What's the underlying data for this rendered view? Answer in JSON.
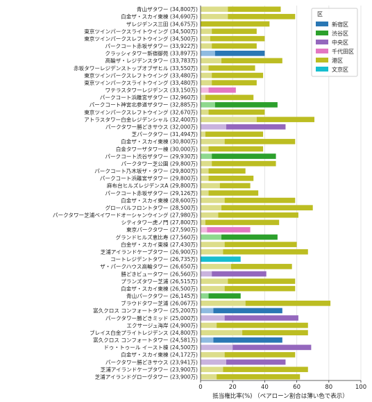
{
  "chart_data": {
    "type": "bar",
    "orientation": "horizontal",
    "stacked": true,
    "xlabel": "抵当権比率(%) （ペアローン割合は薄い色で表示）",
    "xlim": [
      0,
      100
    ],
    "xticks": [
      0,
      20,
      40,
      60,
      80,
      100
    ],
    "grid": true,
    "legend": {
      "title": "区",
      "placement": "top-right",
      "entries": [
        {
          "name": "新宿区",
          "color": "#2a77b4"
        },
        {
          "name": "渋谷区",
          "color": "#2ca02c"
        },
        {
          "name": "中央区",
          "color": "#9467bd"
        },
        {
          "name": "千代田区",
          "color": "#e377c2"
        },
        {
          "name": "港区",
          "color": "#bcbd22"
        },
        {
          "name": "文京区",
          "color": "#17becf"
        }
      ]
    },
    "colors": {
      "新宿区": {
        "dark": "#2a77b4",
        "light": "#8fbbe0"
      },
      "渋谷区": {
        "dark": "#2ca02c",
        "light": "#8ed88e"
      },
      "中央区": {
        "dark": "#9467bd",
        "light": "#c9b3de"
      },
      "千代田区": {
        "dark": "#e377c2",
        "light": "#f2badf"
      },
      "港区": {
        "dark": "#bcbd22",
        "light": "#dcdd8a"
      },
      "文京区": {
        "dark": "#17becf",
        "light": "#7fdde8"
      }
    },
    "rows": [
      {
        "label": "青山ザタワー (34,800万)",
        "ward": "港区",
        "pair": 17,
        "total": 50
      },
      {
        "label": "白金ザ・スカイ東棟 (34,690万)",
        "ward": "港区",
        "pair": 17,
        "total": 59
      },
      {
        "label": "ザレジデンス三田 (34,675万)",
        "ward": "港区",
        "pair": 0,
        "total": 43
      },
      {
        "label": "東京ツインパークスライトウイング (34,500万)",
        "ward": "港区",
        "pair": 7,
        "total": 35
      },
      {
        "label": "東京ツインパークスレフトウイング (34,500万)",
        "ward": "港区",
        "pair": 6,
        "total": 40
      },
      {
        "label": "パークコート赤坂ザタワー (33,922万)",
        "ward": "港区",
        "pair": 7,
        "total": 35
      },
      {
        "label": "クラッシィタワー新宿御苑 (33,897万)",
        "ward": "新宿区",
        "pair": 9,
        "total": 40
      },
      {
        "label": "高輪ザ・レジデンスタワー (33,783万)",
        "ward": "港区",
        "pair": 13,
        "total": 51
      },
      {
        "label": "赤坂タワーレジデンストップオブザヒル (33,550万)",
        "ward": "港区",
        "pair": 5,
        "total": 34
      },
      {
        "label": "東京ツインパークスレフトウイング (33,480万)",
        "ward": "港区",
        "pair": 7,
        "total": 39
      },
      {
        "label": "東京ツインパークスライトウイング (33,480万)",
        "ward": "港区",
        "pair": 7,
        "total": 35
      },
      {
        "label": "ワテラスタワーレジデンス (33,150万)",
        "ward": "千代田区",
        "pair": 5,
        "total": 22
      },
      {
        "label": "パークコート浜離宮ザタワー (32,960万)",
        "ward": "港区",
        "pair": 3,
        "total": 33
      },
      {
        "label": "パークコート神宮北参道ザタワー (32,885万)",
        "ward": "渋谷区",
        "pair": 9,
        "total": 48
      },
      {
        "label": "東京ツインパークスレフトウイング (32,670万)",
        "ward": "港区",
        "pair": 5,
        "total": 40
      },
      {
        "label": "アトラスタワー白金レジデンシャル (32,400万)",
        "ward": "港区",
        "pair": 35,
        "total": 71
      },
      {
        "label": "パークタワー勝どきサウス (32,000万)",
        "ward": "中央区",
        "pair": 16,
        "total": 53
      },
      {
        "label": "芝パークタワー (31,494万)",
        "ward": "港区",
        "pair": 3,
        "total": 39
      },
      {
        "label": "白金ザ・スカイ東棟 (30,800万)",
        "ward": "港区",
        "pair": 15,
        "total": 59
      },
      {
        "label": "白金タワーザタワー棟 (30,000万)",
        "ward": "港区",
        "pair": 5,
        "total": 39
      },
      {
        "label": "パークコート渋谷ザタワー (29,930万)",
        "ward": "渋谷区",
        "pair": 7,
        "total": 47
      },
      {
        "label": "パークタワー芝公園 (29,800万)",
        "ward": "港区",
        "pair": 7,
        "total": 47
      },
      {
        "label": "パークコート乃木坂ザ・タワー (29,800万)",
        "ward": "港区",
        "pair": 5,
        "total": 28
      },
      {
        "label": "パークコート浜離宮ザタワー (29,800万)",
        "ward": "港区",
        "pair": 5,
        "total": 33
      },
      {
        "label": "麻布台ヒルズレジデンスA (29,800万)",
        "ward": "港区",
        "pair": 12,
        "total": 31
      },
      {
        "label": "パークコート赤坂ザタワー (29,126万)",
        "ward": "港区",
        "pair": 5,
        "total": 36
      },
      {
        "label": "白金ザ・スカイ東棟 (28,600万)",
        "ward": "港区",
        "pair": 15,
        "total": 59
      },
      {
        "label": "グローバルフロントタワー (28,500万)",
        "ward": "港区",
        "pair": 13,
        "total": 70
      },
      {
        "label": "パークタワー芝浦ベイワードオーシャンウイング (27,980万)",
        "ward": "港区",
        "pair": 11,
        "total": 61
      },
      {
        "label": "シティタワー虎ノ門 (27,800万)",
        "ward": "港区",
        "pair": 3,
        "total": 49
      },
      {
        "label": "東京パークタワー (27,590万)",
        "ward": "千代田区",
        "pair": 4,
        "total": 31
      },
      {
        "label": "グランドヒルズ恵比寿 (27,560万)",
        "ward": "渋谷区",
        "pair": 13,
        "total": 48
      },
      {
        "label": "白金ザ・スカイ東棟 (27,430万)",
        "ward": "港区",
        "pair": 15,
        "total": 60
      },
      {
        "label": "芝浦アイランドケープタワー (26,900万)",
        "ward": "港区",
        "pair": 14,
        "total": 67
      },
      {
        "label": "コートレジデントタワー (26,735万)",
        "ward": "文京区",
        "pair": 0,
        "total": 25
      },
      {
        "label": "ザ・パークハウス高輪タワー (26,650万)",
        "ward": "港区",
        "pair": 19,
        "total": 57
      },
      {
        "label": "勝どきビュータワー (26,560万)",
        "ward": "中央区",
        "pair": 7,
        "total": 41
      },
      {
        "label": "プランズタワー芝浦 (26,515万)",
        "ward": "港区",
        "pair": 17,
        "total": 59
      },
      {
        "label": "白金ザ・スカイ東棟 (26,500万)",
        "ward": "港区",
        "pair": 15,
        "total": 59
      },
      {
        "label": "青山パークタワー (26,145万)",
        "ward": "渋谷区",
        "pair": 5,
        "total": 25
      },
      {
        "label": "ブラウドタワー芝浦 (26,067万)",
        "ward": "港区",
        "pair": 28,
        "total": 81
      },
      {
        "label": "富久クロス コンフォートタワー (25,200万)",
        "ward": "新宿区",
        "pair": 8,
        "total": 51
      },
      {
        "label": "パークタワー勝どきミッド (25,000万)",
        "ward": "中央区",
        "pair": 15,
        "total": 61
      },
      {
        "label": "エクサージュ海岸 (24,900万)",
        "ward": "港区",
        "pair": 10,
        "total": 67
      },
      {
        "label": "ブレイス白金プライトレジデンス (24,800万)",
        "ward": "港区",
        "pair": 26,
        "total": 67
      },
      {
        "label": "富久クロス コンフォートタワー (24,581万)",
        "ward": "新宿区",
        "pair": 8,
        "total": 51
      },
      {
        "label": "ドゥ・トゥール イースト棟 (24,500万)",
        "ward": "中央区",
        "pair": 20,
        "total": 69
      },
      {
        "label": "白金ザ・スカイ東棟 (24,172万)",
        "ward": "港区",
        "pair": 15,
        "total": 59
      },
      {
        "label": "パークタワー勝どきサウス (23,941万)",
        "ward": "中央区",
        "pair": 16,
        "total": 53
      },
      {
        "label": "芝浦アイランドケープタワー (23,900万)",
        "ward": "港区",
        "pair": 14,
        "total": 67
      },
      {
        "label": "芝浦アイランドグローヴタワー (23,900万)",
        "ward": "港区",
        "pair": 10,
        "total": 62
      }
    ]
  }
}
